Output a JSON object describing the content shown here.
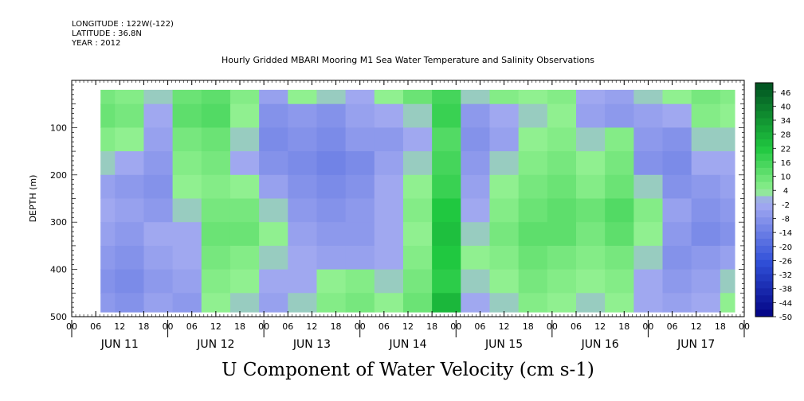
{
  "header": {
    "longitude": "LONGITUDE : 122W(-122)",
    "latitude": "LATITUDE : 36.8N",
    "year": "YEAR : 2012",
    "title": "Hourly Gridded MBARI Mooring M1 Sea Water Temperature and Salinity Observations"
  },
  "footer": {
    "title": "U Component of Water Velocity (cm s-1)"
  },
  "colors": {
    "dark_blue": "#000080",
    "mid_blue": "#3050d8",
    "light_blue": "#a0a8f0",
    "light_green": "#90f090",
    "mid_green": "#20c840",
    "dark_green": "#005020"
  },
  "chart_data": {
    "type": "heatmap",
    "ylabel": "DEPTH (m)",
    "xlabel": "",
    "ylim": [
      500,
      0
    ],
    "y_ticks": [
      100,
      200,
      300,
      400,
      500
    ],
    "x_hour_ticks": [
      "00",
      "06",
      "12",
      "18",
      "00",
      "06",
      "12",
      "18",
      "00",
      "06",
      "12",
      "18",
      "00",
      "06",
      "12",
      "18",
      "00",
      "06",
      "12",
      "18",
      "00",
      "06",
      "12",
      "18",
      "00",
      "06",
      "12",
      "18",
      "00"
    ],
    "x_day_labels": [
      "JUN 11",
      "JUN 12",
      "JUN 13",
      "JUN 14",
      "JUN 15",
      "JUN 16",
      "JUN 17"
    ],
    "x_range_days": [
      0,
      7
    ],
    "data_x_range_days": [
      0.3,
      6.9
    ],
    "data_depth_range": [
      20,
      490
    ],
    "colorbar_levels": [
      46,
      40,
      34,
      28,
      22,
      16,
      10,
      4,
      -2,
      -8,
      -14,
      -20,
      -26,
      -32,
      -38,
      -44,
      -50
    ],
    "colorbar_min": -50,
    "colorbar_max": 50,
    "colorbar_step": 3,
    "depths_m": [
      25,
      75,
      125,
      175,
      225,
      275,
      325,
      375,
      425,
      475
    ],
    "times_day": [
      0.3,
      0.6,
      0.9,
      1.2,
      1.5,
      1.8,
      2.1,
      2.4,
      2.7,
      3.0,
      3.3,
      3.6,
      3.9,
      4.2,
      4.5,
      4.8,
      5.1,
      5.4,
      5.7,
      6.0,
      6.3,
      6.6,
      6.9
    ],
    "u_values_cm_s": [
      [
        8,
        6,
        2,
        10,
        12,
        6,
        -4,
        4,
        2,
        -2,
        4,
        10,
        16,
        2,
        6,
        4,
        6,
        0,
        -4,
        2,
        4,
        8,
        6
      ],
      [
        10,
        8,
        0,
        12,
        14,
        4,
        -8,
        -6,
        -8,
        -4,
        -2,
        2,
        18,
        -6,
        -2,
        2,
        4,
        -4,
        -6,
        -4,
        0,
        6,
        4
      ],
      [
        6,
        4,
        -4,
        8,
        10,
        2,
        -10,
        -8,
        -10,
        -6,
        -6,
        0,
        14,
        -8,
        -4,
        4,
        6,
        2,
        6,
        -6,
        -8,
        2,
        2
      ],
      [
        2,
        -2,
        -6,
        6,
        8,
        0,
        -8,
        -10,
        -12,
        -10,
        -4,
        2,
        16,
        -6,
        2,
        6,
        8,
        4,
        8,
        -8,
        -10,
        -2,
        0
      ],
      [
        -4,
        -6,
        -8,
        4,
        6,
        4,
        -4,
        -8,
        -10,
        -8,
        -2,
        4,
        18,
        -4,
        4,
        8,
        10,
        6,
        10,
        2,
        -8,
        -6,
        -4
      ],
      [
        -2,
        -4,
        -6,
        2,
        8,
        8,
        2,
        -6,
        -8,
        -6,
        0,
        6,
        22,
        -2,
        6,
        10,
        12,
        10,
        14,
        6,
        -4,
        -8,
        -6
      ],
      [
        -4,
        -6,
        -2,
        0,
        10,
        10,
        4,
        -4,
        -6,
        -6,
        -2,
        4,
        24,
        2,
        8,
        12,
        12,
        8,
        12,
        4,
        -6,
        -10,
        -8
      ],
      [
        -6,
        -8,
        -4,
        -2,
        8,
        6,
        2,
        -2,
        -4,
        -4,
        0,
        6,
        22,
        4,
        6,
        10,
        8,
        6,
        8,
        2,
        -8,
        -6,
        -4
      ],
      [
        -8,
        -10,
        -6,
        -4,
        6,
        4,
        -2,
        0,
        4,
        6,
        2,
        8,
        20,
        2,
        4,
        8,
        6,
        4,
        6,
        0,
        -6,
        -4,
        2
      ],
      [
        -6,
        -8,
        -4,
        -6,
        4,
        2,
        -4,
        2,
        6,
        8,
        4,
        10,
        26,
        0,
        2,
        6,
        4,
        2,
        4,
        -2,
        -4,
        -2,
        4
      ]
    ]
  }
}
